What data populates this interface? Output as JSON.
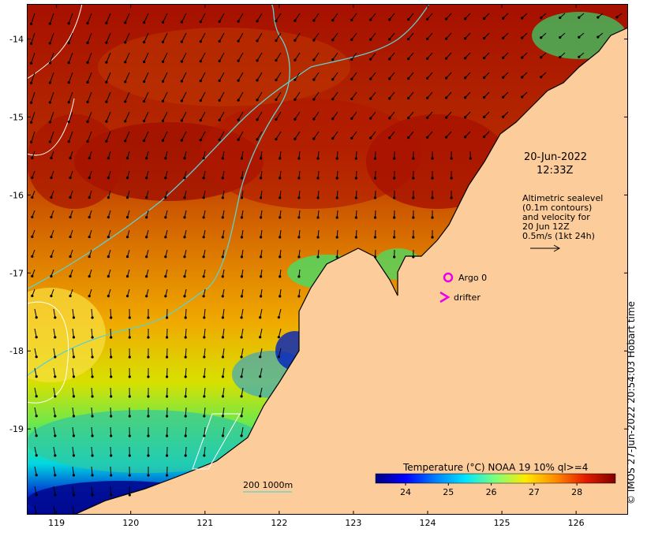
{
  "map": {
    "lon_range": [
      118.6,
      126.7
    ],
    "lat_range": [
      -20.1,
      -13.55
    ],
    "lon_ticks": [
      119,
      120,
      121,
      122,
      123,
      124,
      125,
      126
    ],
    "lat_ticks": [
      -14,
      -15,
      -16,
      -17,
      -18,
      -19
    ],
    "lon_tick_labels": [
      "119",
      "120",
      "121",
      "122",
      "123",
      "124",
      "125",
      "126"
    ],
    "lat_tick_labels": [
      "-14",
      "-15",
      "-16",
      "-17",
      "-18",
      "-19"
    ]
  },
  "annotations": {
    "date": "20-Jun-2022",
    "time": "12:33Z",
    "altimetry_lines": [
      "Altimetric sealevel",
      "(0.1m contours)",
      "and velocity for",
      "20 Jun 12Z",
      "0.5m/s (1kt 24h)"
    ]
  },
  "legend": {
    "argo_label": "Argo 0",
    "drifter_label": "drifter",
    "argo_color": "#e800e8",
    "drifter_color": "#e800e8",
    "bathy_label": "200  1000m",
    "bathy_color": "#5fd0d0"
  },
  "colorbar": {
    "title": "Temperature (°C) NOAA 19 10% ql>=4",
    "min": 23.3,
    "max": 28.9,
    "ticks": [
      24,
      25,
      26,
      27,
      28
    ],
    "tick_labels": [
      "24",
      "25",
      "26",
      "27",
      "28"
    ],
    "colors": [
      "#00007f",
      "#0000ff",
      "#0080ff",
      "#00e5ff",
      "#7dff7a",
      "#ffea00",
      "#ff8c00",
      "#e31a00",
      "#7f0000"
    ]
  },
  "credit": "© IMOS 27-Jun-2022 20:54:03 Hobart time"
}
